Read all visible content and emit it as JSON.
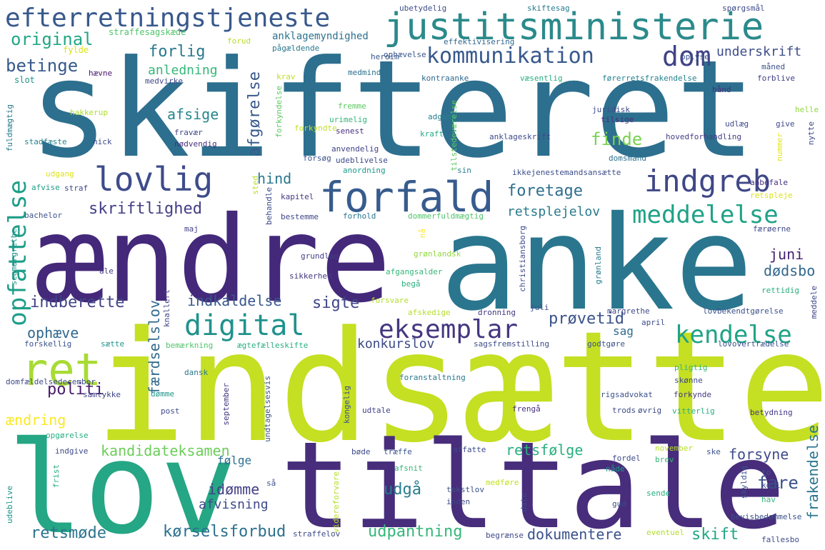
{
  "words": [
    {
      "text": "skifteret",
      "color": "#2d6f8e"
    },
    {
      "text": "ændre",
      "color": "#44287a"
    },
    {
      "text": "anke",
      "color": "#2a768e"
    },
    {
      "text": "indsætte",
      "color": "#c5df22"
    },
    {
      "text": "lov",
      "color": "#25a684"
    },
    {
      "text": "tiltale",
      "color": "#472d7b"
    },
    {
      "text": "justitsministerie",
      "color": "#2b8a8b"
    },
    {
      "text": "efterretningstjeneste",
      "color": "#38598c"
    },
    {
      "text": "forfald",
      "color": "#375b8d"
    },
    {
      "text": "ret",
      "color": "#a8db34"
    },
    {
      "text": "kommunikation",
      "color": "#38598c"
    },
    {
      "text": "dom",
      "color": "#404387"
    },
    {
      "text": "lovlig",
      "color": "#3e4c8a"
    },
    {
      "text": "indgreb",
      "color": "#3f4788"
    },
    {
      "text": "meddelelse",
      "color": "#1fa287"
    },
    {
      "text": "digital",
      "color": "#20928c"
    },
    {
      "text": "eksemplar",
      "color": "#453781"
    },
    {
      "text": "kendelse",
      "color": "#20a386"
    },
    {
      "text": "opfattelse",
      "color": "#1f9e89"
    },
    {
      "text": "original",
      "color": "#22a785"
    },
    {
      "text": "betinge",
      "color": "#375a8c"
    },
    {
      "text": "forlig",
      "color": "#2a788e"
    },
    {
      "text": "underskrift",
      "color": "#3d4e8a"
    },
    {
      "text": "anledning",
      "color": "#35b779"
    },
    {
      "text": "afgørelse",
      "color": "#38598c"
    },
    {
      "text": "afsige",
      "color": "#25858e"
    },
    {
      "text": "finde",
      "color": "#7ad151"
    },
    {
      "text": "foretage",
      "color": "#2e6e8e"
    },
    {
      "text": "retsplejelov",
      "color": "#29798e"
    },
    {
      "text": "skriftlighed",
      "color": "#433e85"
    },
    {
      "text": "hind",
      "color": "#2a778e"
    },
    {
      "text": "juni",
      "color": "#482173"
    },
    {
      "text": "dødsbo",
      "color": "#31688e"
    },
    {
      "text": "indkaldelse",
      "color": "#39568c"
    },
    {
      "text": "indberette",
      "color": "#414487"
    },
    {
      "text": "sigte",
      "color": "#404688"
    },
    {
      "text": "prøvetid",
      "color": "#3b528b"
    },
    {
      "text": "ophæve",
      "color": "#31688e"
    },
    {
      "text": "færdselslov",
      "color": "#306a8e"
    },
    {
      "text": "konkurslov",
      "color": "#3e4a89"
    },
    {
      "text": "sag",
      "color": "#306a8e"
    },
    {
      "text": "politi",
      "color": "#481b6d"
    },
    {
      "text": "ændring",
      "color": "#fde725"
    },
    {
      "text": "kandidateksamen",
      "color": "#6ccd5a"
    },
    {
      "text": "retsfølge",
      "color": "#29af7f"
    },
    {
      "text": "forsyne",
      "color": "#3e4c8a"
    },
    {
      "text": "frakendelse",
      "color": "#2a768e"
    },
    {
      "text": "følge",
      "color": "#2e6f8e"
    },
    {
      "text": "idømme",
      "color": "#433e85"
    },
    {
      "text": "udgå",
      "color": "#287d8e"
    },
    {
      "text": "fare",
      "color": "#3b528b"
    },
    {
      "text": "afvisning",
      "color": "#3e4a89"
    },
    {
      "text": "retsmøde",
      "color": "#2b748e"
    },
    {
      "text": "kørselsforbud",
      "color": "#2c718e"
    },
    {
      "text": "udpantning",
      "color": "#35b779"
    },
    {
      "text": "dokumentere",
      "color": "#3b528b"
    },
    {
      "text": "skift",
      "color": "#22a884"
    },
    {
      "text": "straffesagskæde",
      "color": "#50c46a"
    },
    {
      "text": "anklagemyndighed",
      "color": "#2c718e"
    },
    {
      "text": "ubetydelig",
      "color": "#3e4c8a"
    },
    {
      "text": "skiftesag",
      "color": "#287c8e"
    },
    {
      "text": "spørgsmål",
      "color": "#3e4a89"
    },
    {
      "text": "effektivisering",
      "color": "#31688e"
    },
    {
      "text": "fylde",
      "color": "#dde318"
    },
    {
      "text": "forud",
      "color": "#b5de2b"
    },
    {
      "text": "pågældende",
      "color": "#2a788e"
    },
    {
      "text": "ophævelse",
      "color": "#39568c"
    },
    {
      "text": "heroim",
      "color": "#38598c"
    },
    {
      "text": "oplyse",
      "color": "#3a548c"
    },
    {
      "text": "måned",
      "color": "#3b528b"
    },
    {
      "text": "slot",
      "color": "#1f968b"
    },
    {
      "text": "hævne",
      "color": "#48186a"
    },
    {
      "text": "medvirke",
      "color": "#3e4a89"
    },
    {
      "text": "krav",
      "color": "#bddf26"
    },
    {
      "text": "medmindre",
      "color": "#2c718e"
    },
    {
      "text": "kontraanke",
      "color": "#306a8e"
    },
    {
      "text": "væsentlig",
      "color": "#29af7f"
    },
    {
      "text": "førerretsfrakendelse",
      "color": "#26828e"
    },
    {
      "text": "forblive",
      "color": "#404387"
    },
    {
      "text": "hånd",
      "color": "#46307e"
    },
    {
      "text": "hakkerup",
      "color": "#addc30"
    },
    {
      "text": "forkyndelse",
      "color": "#5ec962"
    },
    {
      "text": "fremme",
      "color": "#5ec962"
    },
    {
      "text": "urimelig",
      "color": "#35b779"
    },
    {
      "text": "adgang",
      "color": "#25838e"
    },
    {
      "text": "juridisk",
      "color": "#3e4c8a"
    },
    {
      "text": "tilsige",
      "color": "#46307e"
    },
    {
      "text": "helle",
      "color": "#93d741"
    },
    {
      "text": "fuldmægtig",
      "color": "#287d8e"
    },
    {
      "text": "stadfæste",
      "color": "#26828e"
    },
    {
      "text": "nick",
      "color": "#3e4989"
    },
    {
      "text": "fravær",
      "color": "#3f4788"
    },
    {
      "text": "nødvendig",
      "color": "#46307e"
    },
    {
      "text": "forkyndte",
      "color": "#c2df23"
    },
    {
      "text": "senest",
      "color": "#46307e"
    },
    {
      "text": "kraft",
      "color": "#22a785"
    },
    {
      "text": "tilstedeværelse",
      "color": "#5ec962"
    },
    {
      "text": "udlæg",
      "color": "#3e4a89"
    },
    {
      "text": "give",
      "color": "#3f4788"
    },
    {
      "text": "anklageskrift",
      "color": "#3e4c8a"
    },
    {
      "text": "hovedforhandling",
      "color": "#433e85"
    },
    {
      "text": "nummer",
      "color": "#e2e418"
    },
    {
      "text": "nytte",
      "color": "#3e4a89"
    },
    {
      "text": "anvendelig",
      "color": "#404387"
    },
    {
      "text": "udeblivelse",
      "color": "#3e4a89"
    },
    {
      "text": "anordning",
      "color": "#1f988b"
    },
    {
      "text": "forsøg",
      "color": "#3b528b"
    },
    {
      "text": "domsmand",
      "color": "#2c718e"
    },
    {
      "text": "udgang",
      "color": "#dde318"
    },
    {
      "text": "afvise",
      "color": "#1f9e89"
    },
    {
      "text": "straf",
      "color": "#3f4788"
    },
    {
      "text": "sin",
      "color": "#287d8e"
    },
    {
      "text": "ikkejenestemandsansætte",
      "color": "#3d4e8a"
    },
    {
      "text": "anbefale",
      "color": "#46307e"
    },
    {
      "text": "sted",
      "color": "#b8de29"
    },
    {
      "text": "behandle",
      "color": "#3e4a89"
    },
    {
      "text": "kapitel",
      "color": "#453781"
    },
    {
      "text": "retspleje",
      "color": "#dde318"
    },
    {
      "text": "bachelor",
      "color": "#3b528b"
    },
    {
      "text": "bestemme",
      "color": "#3f4788"
    },
    {
      "text": "forhold",
      "color": "#2a768e"
    },
    {
      "text": "dommerfuldmægtig",
      "color": "#50c46a"
    },
    {
      "text": "segmargrethe",
      "color": "#20928c"
    },
    {
      "text": "maj",
      "color": "#433e85"
    },
    {
      "text": "nå",
      "color": "#fde725"
    },
    {
      "text": "christiansborg",
      "color": "#3e4c8a"
    },
    {
      "text": "færøerne",
      "color": "#3e4a89"
    },
    {
      "text": "grundlag",
      "color": "#433e85"
    },
    {
      "text": "grønlandsk",
      "color": "#93d741"
    },
    {
      "text": "grønland",
      "color": "#287c8e"
    },
    {
      "text": "ale",
      "color": "#433e85"
    },
    {
      "text": "sikkerhed",
      "color": "#453781"
    },
    {
      "text": "afgangsalder",
      "color": "#35b779"
    },
    {
      "text": "begå",
      "color": "#29af7f"
    },
    {
      "text": "rettidig",
      "color": "#29af7f"
    },
    {
      "text": "forsvare",
      "color": "#b5de2b"
    },
    {
      "text": "juli",
      "color": "#3b528b"
    },
    {
      "text": "meddele",
      "color": "#3f4788"
    },
    {
      "text": "knallert",
      "color": "#414487"
    },
    {
      "text": "afskedige",
      "color": "#b5de2b"
    },
    {
      "text": "dronning",
      "color": "#453781"
    },
    {
      "text": "margrethe",
      "color": "#3e4a89"
    },
    {
      "text": "lovbekendtgørelse",
      "color": "#3b528b"
    },
    {
      "text": "april",
      "color": "#3e4c8a"
    },
    {
      "text": "forskellig",
      "color": "#3b528b"
    },
    {
      "text": "sætte",
      "color": "#1f968b"
    },
    {
      "text": "bemærkning",
      "color": "#50c46a"
    },
    {
      "text": "ægtefælleskifte",
      "color": "#29af7f"
    },
    {
      "text": "sagsfremstilling",
      "color": "#3e4c8a"
    },
    {
      "text": "godtgøre",
      "color": "#3b528b"
    },
    {
      "text": "lovovertrædelse",
      "color": "#3b528b"
    },
    {
      "text": "dansk",
      "color": "#2a788e"
    },
    {
      "text": "pligtig",
      "color": "#35b779"
    },
    {
      "text": "skønne",
      "color": "#3e4a89"
    },
    {
      "text": "foranstaltning",
      "color": "#2a788e"
    },
    {
      "text": "rigsadvokat",
      "color": "#3b528b"
    },
    {
      "text": "forkynde",
      "color": "#453781"
    },
    {
      "text": "domfældelsedecember",
      "color": "#3e4a89"
    },
    {
      "text": "dømme",
      "color": "#1f968b"
    },
    {
      "text": "samtykke",
      "color": "#404387"
    },
    {
      "text": "post",
      "color": "#3e4c8a"
    },
    {
      "text": "september",
      "color": "#453781"
    },
    {
      "text": "undtagelsesvis",
      "color": "#3b528b"
    },
    {
      "text": "kongelig",
      "color": "#3b528b"
    },
    {
      "text": "udtale",
      "color": "#404387"
    },
    {
      "text": "frengå",
      "color": "#46307e"
    },
    {
      "text": "trods",
      "color": "#3e4a89"
    },
    {
      "text": "øvrig",
      "color": "#3e4a89"
    },
    {
      "text": "vitterlig",
      "color": "#29af7f"
    },
    {
      "text": "betydning",
      "color": "#453781"
    },
    {
      "text": "opgørelse",
      "color": "#29af7f"
    },
    {
      "text": "indgive",
      "color": "#3e4a89"
    },
    {
      "text": "bøde",
      "color": "#3e4a89"
    },
    {
      "text": "træffe",
      "color": "#3b528b"
    },
    {
      "text": "affatte",
      "color": "#3e4a89"
    },
    {
      "text": "november",
      "color": "#b5de2b"
    },
    {
      "text": "ske",
      "color": "#3b528b"
    },
    {
      "text": "fordel",
      "color": "#3e4a89"
    },
    {
      "text": "brev",
      "color": "#35b779"
    },
    {
      "text": "nåde",
      "color": "#1f968b"
    },
    {
      "text": "to",
      "color": "#3b528b"
    },
    {
      "text": "kopi",
      "color": "#3e4a89"
    },
    {
      "text": "skyldig",
      "color": "#3b528b"
    },
    {
      "text": "hav",
      "color": "#35b779"
    },
    {
      "text": "afsnit",
      "color": "#35b779"
    },
    {
      "text": "frist",
      "color": "#29af7f"
    },
    {
      "text": "så",
      "color": "#3b528b"
    },
    {
      "text": "videreforvare",
      "color": "#b5de2b"
    },
    {
      "text": "tekstlov",
      "color": "#3b528b"
    },
    {
      "text": "medføre",
      "color": "#c2df23"
    },
    {
      "text": "inden",
      "color": "#3e4a89"
    },
    {
      "text": "dato",
      "color": "#3e4a89"
    },
    {
      "text": "gud",
      "color": "#3e4a89"
    },
    {
      "text": "sende",
      "color": "#29af7f"
    },
    {
      "text": "bevisbedømmelse",
      "color": "#3b528b"
    },
    {
      "text": "udeblive",
      "color": "#1f968b"
    },
    {
      "text": "straffelov",
      "color": "#3e4a89"
    },
    {
      "text": "begrænse",
      "color": "#3e4a89"
    },
    {
      "text": "eventuel",
      "color": "#b5de2b"
    },
    {
      "text": "fallesbo",
      "color": "#3e4a89"
    }
  ]
}
